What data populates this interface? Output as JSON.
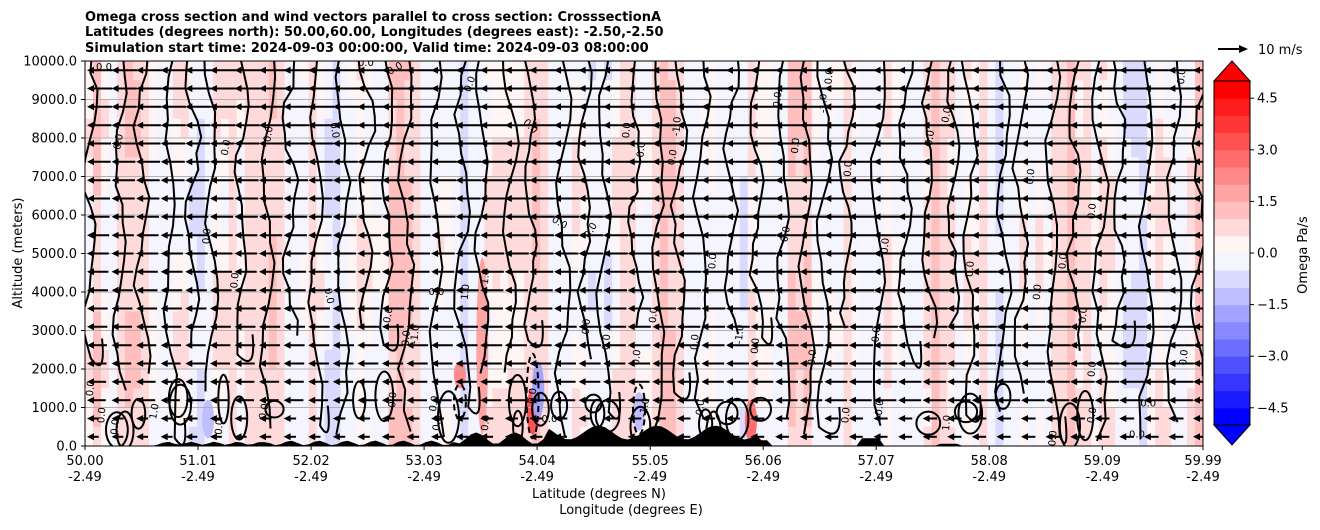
{
  "chart_data": {
    "type": "heatmap",
    "title_lines": [
      "Omega cross section and wind vectors parallel to cross section: CrosssectionA",
      "Latitudes (degrees north): 50.00,60.00, Longitudes (degrees east): -2.50,-2.50",
      "Simulation start time: 2024-09-03 00:00:00, Valid time: 2024-09-03 08:00:00"
    ],
    "ylabel": "Altitude (meters)",
    "xlabel_lat": "Latitude (degrees N)",
    "xlabel_lon": "Longitude (degrees E)",
    "ylim": [
      0,
      10000
    ],
    "xlim": [
      50.0,
      59.99
    ],
    "y_ticks": [
      "0.0",
      "1000.0",
      "2000.0",
      "3000.0",
      "4000.0",
      "5000.0",
      "6000.0",
      "7000.0",
      "8000.0",
      "9000.0",
      "10000.0"
    ],
    "x_ticks": [
      {
        "lat": "50.00",
        "lon": "-2.49"
      },
      {
        "lat": "51.01",
        "lon": "-2.49"
      },
      {
        "lat": "52.02",
        "lon": "-2.49"
      },
      {
        "lat": "53.03",
        "lon": "-2.49"
      },
      {
        "lat": "54.04",
        "lon": "-2.49"
      },
      {
        "lat": "55.05",
        "lon": "-2.49"
      },
      {
        "lat": "56.06",
        "lon": "-2.49"
      },
      {
        "lat": "57.07",
        "lon": "-2.49"
      },
      {
        "lat": "58.08",
        "lon": "-2.49"
      },
      {
        "lat": "59.09",
        "lon": "-2.49"
      },
      {
        "lat": "59.99",
        "lon": "-2.49"
      }
    ],
    "colorbar": {
      "label": "Omega Pa/s",
      "range": [
        -5.0,
        5.0
      ],
      "ticks": [
        "4.5",
        "3.0",
        "1.5",
        "0.0",
        "−1.5",
        "−3.0",
        "−4.5"
      ],
      "colors": [
        "#0000ff",
        "#1b1bff",
        "#3636ff",
        "#5151ff",
        "#6d6dff",
        "#8888ff",
        "#a3a3ff",
        "#bfbfff",
        "#dadaff",
        "#f5f5ff",
        "#fff5f5",
        "#ffdada",
        "#ffbfbf",
        "#ffa3a3",
        "#ff8888",
        "#ff6d6d",
        "#ff5151",
        "#ff3636",
        "#ff1b1b",
        "#ff0000"
      ]
    },
    "quiver_key_label": "10 m/s",
    "contour_labels": [
      {
        "text": "0.0",
        "x": 50.17,
        "y": 9850,
        "rot": 0
      },
      {
        "text": "0.0",
        "x": 50.3,
        "y": 7900,
        "rot": -80
      },
      {
        "text": "0.0",
        "x": 51.26,
        "y": 7750,
        "rot": -80
      },
      {
        "text": "0.0",
        "x": 51.64,
        "y": 8100,
        "rot": -80
      },
      {
        "text": "0.0",
        "x": 52.23,
        "y": 8200,
        "rot": 80
      },
      {
        "text": "0.0",
        "x": 52.51,
        "y": 9950,
        "rot": 0
      },
      {
        "text": "0.0",
        "x": 52.77,
        "y": 9800,
        "rot": -30
      },
      {
        "text": "0.0",
        "x": 53.44,
        "y": 9400,
        "rot": -70
      },
      {
        "text": "0.0",
        "x": 51.09,
        "y": 5450,
        "rot": -85
      },
      {
        "text": "0.0",
        "x": 51.34,
        "y": 4300,
        "rot": -85
      },
      {
        "text": "0.0",
        "x": 53.14,
        "y": 4000,
        "rot": 0
      },
      {
        "text": "0.0",
        "x": 52.18,
        "y": 3900,
        "rot": 80
      },
      {
        "text": "1.0",
        "x": 53.4,
        "y": 4000,
        "rot": -85
      },
      {
        "text": "1.0",
        "x": 53.58,
        "y": 4400,
        "rot": -85
      },
      {
        "text": "0.0",
        "x": 52.71,
        "y": 3400,
        "rot": -80
      },
      {
        "text": "-1.0",
        "x": 52.95,
        "y": 2900,
        "rot": -85
      },
      {
        "text": "0.0",
        "x": 52.87,
        "y": 2800,
        "rot": -85
      },
      {
        "text": "0.0",
        "x": 53.98,
        "y": 8300,
        "rot": 45
      },
      {
        "text": "0.0",
        "x": 54.48,
        "y": 3100,
        "rot": -85
      },
      {
        "text": "0.0",
        "x": 54.84,
        "y": 8200,
        "rot": -85
      },
      {
        "text": "0.0",
        "x": 54.97,
        "y": 7700,
        "rot": -85
      },
      {
        "text": "0.0",
        "x": 55.25,
        "y": 7500,
        "rot": -80
      },
      {
        "text": "-1.0",
        "x": 55.29,
        "y": 8300,
        "rot": -85
      },
      {
        "text": "0.0",
        "x": 54.24,
        "y": 5800,
        "rot": 30
      },
      {
        "text": "0.0",
        "x": 54.52,
        "y": 5600,
        "rot": -60
      },
      {
        "text": "0.0",
        "x": 54.66,
        "y": 2700,
        "rot": -85
      },
      {
        "text": "0.0",
        "x": 54.93,
        "y": 2300,
        "rot": -85
      },
      {
        "text": "0.0",
        "x": 55.08,
        "y": 3400,
        "rot": -85
      },
      {
        "text": "-1.0",
        "x": 56.6,
        "y": 8900,
        "rot": -90
      },
      {
        "text": "0.0",
        "x": 55.45,
        "y": 2700,
        "rot": -85
      },
      {
        "text": "0.0",
        "x": 55.61,
        "y": 4800,
        "rot": -85
      },
      {
        "text": "0.0",
        "x": 55.99,
        "y": 2600,
        "rot": -85
      },
      {
        "text": "0.0",
        "x": 56.35,
        "y": 7800,
        "rot": -85
      },
      {
        "text": "0.0",
        "x": 56.19,
        "y": 9000,
        "rot": -85
      },
      {
        "text": "0.0",
        "x": 56.26,
        "y": 5500,
        "rot": -80
      },
      {
        "text": "0.0",
        "x": 57.07,
        "y": 2900,
        "rot": -85
      },
      {
        "text": "0.0",
        "x": 56.5,
        "y": 2300,
        "rot": -85
      },
      {
        "text": "0.0",
        "x": 57.55,
        "y": 8000,
        "rot": -80
      },
      {
        "text": "0.0",
        "x": 57.91,
        "y": 4600,
        "rot": -85
      },
      {
        "text": "0.0",
        "x": 58.51,
        "y": 4000,
        "rot": -85
      },
      {
        "text": "0.0",
        "x": 58.74,
        "y": 4800,
        "rot": -85
      },
      {
        "text": "0.0",
        "x": 58.92,
        "y": 3400,
        "rot": -85
      },
      {
        "text": "0.0",
        "x": 59.0,
        "y": 2000,
        "rot": -85
      },
      {
        "text": "0.0",
        "x": 59.82,
        "y": 2300,
        "rot": -85
      },
      {
        "text": "0.0",
        "x": 59.5,
        "y": 1100,
        "rot": 0
      },
      {
        "text": "0.0",
        "x": 59.0,
        "y": 800,
        "rot": -80
      },
      {
        "text": "0.0",
        "x": 59.4,
        "y": 300,
        "rot": 0
      },
      {
        "text": "0.0",
        "x": 57.15,
        "y": 5200,
        "rot": -85
      },
      {
        "text": "0.0",
        "x": 57.7,
        "y": 8600,
        "rot": -80
      },
      {
        "text": "0.0",
        "x": 59.0,
        "y": 6100,
        "rot": -85
      },
      {
        "text": "0.0",
        "x": 56.82,
        "y": 7200,
        "rot": -85
      },
      {
        "text": "0.0",
        "x": 58.45,
        "y": 7000,
        "rot": -85
      },
      {
        "text": "0.0",
        "x": 59.8,
        "y": 9600,
        "rot": -85
      },
      {
        "text": "0.0",
        "x": 56.65,
        "y": 9600,
        "rot": -85
      },
      {
        "text": "-1.0",
        "x": 55.85,
        "y": 2900,
        "rot": -85
      },
      {
        "text": "0.0",
        "x": 51.6,
        "y": 900,
        "rot": -80
      },
      {
        "text": "1.0",
        "x": 50.62,
        "y": 900,
        "rot": -80
      },
      {
        "text": "0.0",
        "x": 50.27,
        "y": 500,
        "rot": -85
      },
      {
        "text": "0.0",
        "x": 50.05,
        "y": 1500,
        "rot": -85
      },
      {
        "text": "0.0",
        "x": 50.15,
        "y": 800,
        "rot": -85
      },
      {
        "text": "0.0",
        "x": 51.2,
        "y": 500,
        "rot": -85
      },
      {
        "text": "0.0",
        "x": 52.75,
        "y": 1200,
        "rot": -85
      },
      {
        "text": "0.0",
        "x": 53.15,
        "y": 600,
        "rot": -80
      },
      {
        "text": "0.0",
        "x": 53.12,
        "y": 1100,
        "rot": -80
      },
      {
        "text": "0.0",
        "x": 53.58,
        "y": 600,
        "rot": -85
      },
      {
        "text": "0.0",
        "x": 54.0,
        "y": 1300,
        "rot": -85
      },
      {
        "text": "-1.0",
        "x": 55.0,
        "y": 1000,
        "rot": -80
      },
      {
        "text": "0.0",
        "x": 55.5,
        "y": 1000,
        "rot": -85
      },
      {
        "text": "0.0",
        "x": 56.8,
        "y": 800,
        "rot": -85
      },
      {
        "text": "0.0",
        "x": 57.1,
        "y": 1000,
        "rot": -85
      },
      {
        "text": "1.0",
        "x": 57.7,
        "y": 600,
        "rot": -85
      },
      {
        "text": "0.0",
        "x": 54.15,
        "y": 700,
        "rot": 0
      },
      {
        "text": "0.0",
        "x": 58.65,
        "y": 200,
        "rot": -85
      }
    ]
  }
}
